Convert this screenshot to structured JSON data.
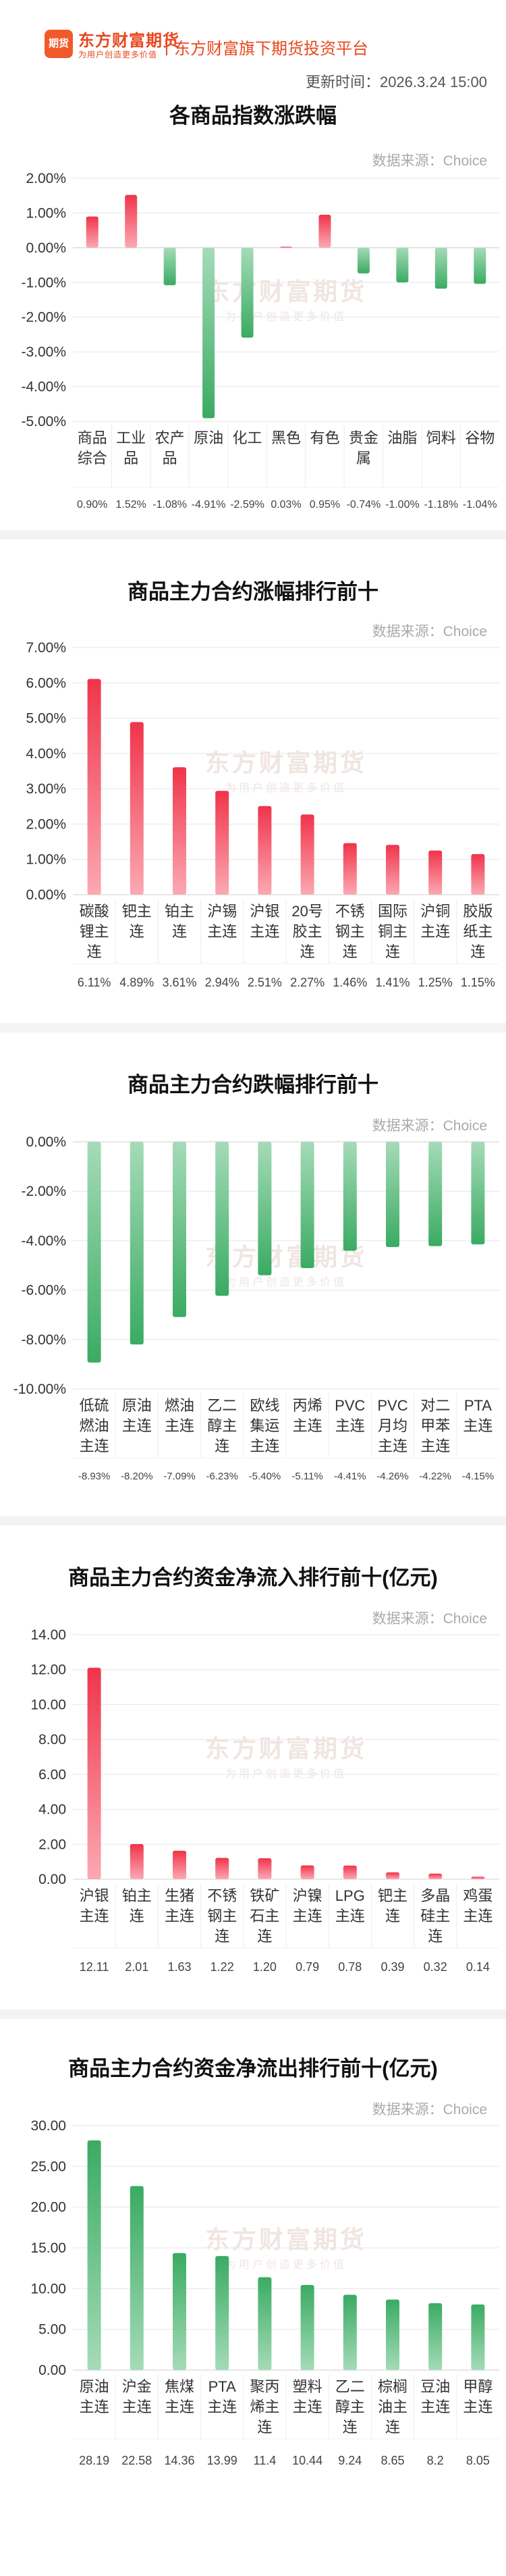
{
  "header": {
    "logo_mark": "期货",
    "logo_text": "东方财富期货",
    "logo_sub": "为用户创造更多价值",
    "tagline": "东方财富旗下期货投资平台",
    "update_time": "更新时间：2026.3.24 15:00"
  },
  "watermark": {
    "main": "东方财富期货",
    "sub": "为用户创造更多价值"
  },
  "colors": {
    "up": "#f0344a",
    "down": "#3aab62",
    "accent": "#e8471d"
  },
  "charts": [
    {
      "title": "各商品指数涨跌幅",
      "source": "数据来源：Choice",
      "chart_data": {
        "type": "bar",
        "categories": [
          "商品综合",
          "工业品",
          "农产品",
          "原油",
          "化工",
          "黑色",
          "有色",
          "贵金属",
          "油脂",
          "饲料",
          "谷物"
        ],
        "values": [
          0.9,
          1.52,
          -1.08,
          -4.91,
          -2.59,
          0.03,
          0.95,
          -0.74,
          -1.0,
          -1.18,
          -1.04
        ],
        "value_labels": [
          "0.90%",
          "1.52%",
          "-1.08%",
          "-4.91%",
          "-2.59%",
          "0.03%",
          "0.95%",
          "-0.74%",
          "-1.00%",
          "-1.18%",
          "-1.04%"
        ],
        "ylim": [
          -5,
          2
        ],
        "yticks": [
          2,
          1,
          0,
          -1,
          -2,
          -3,
          -4,
          -5
        ],
        "ytick_labels": [
          "2.00%",
          "1.00%",
          "0.00%",
          "-1.00%",
          "-2.00%",
          "-3.00%",
          "-4.00%",
          "-5.00%"
        ],
        "category_lines": [
          [
            "商品",
            "综合"
          ],
          [
            "工业",
            "品"
          ],
          [
            "农产",
            "品"
          ],
          [
            "原油"
          ],
          [
            "化工"
          ],
          [
            "黑色"
          ],
          [
            "有色"
          ],
          [
            "贵金",
            "属"
          ],
          [
            "油脂"
          ],
          [
            "饲料"
          ],
          [
            "谷物"
          ]
        ],
        "grid": true
      }
    },
    {
      "title": "商品主力合约涨幅排行前十",
      "source": "数据来源：Choice",
      "chart_data": {
        "type": "bar",
        "categories": [
          "碳酸锂主连",
          "钯主连",
          "铂主连",
          "沪锡主连",
          "沪银主连",
          "20号胶主连",
          "不锈钢主连",
          "国际铜主连",
          "沪铜主连",
          "胶版纸主连"
        ],
        "values": [
          6.11,
          4.89,
          3.61,
          2.94,
          2.51,
          2.27,
          1.46,
          1.41,
          1.25,
          1.15
        ],
        "value_labels": [
          "6.11%",
          "4.89%",
          "3.61%",
          "2.94%",
          "2.51%",
          "2.27%",
          "1.46%",
          "1.41%",
          "1.25%",
          "1.15%"
        ],
        "ylim": [
          0,
          7
        ],
        "yticks": [
          7,
          6,
          5,
          4,
          3,
          2,
          1,
          0
        ],
        "ytick_labels": [
          "7.00%",
          "6.00%",
          "5.00%",
          "4.00%",
          "3.00%",
          "2.00%",
          "1.00%",
          "0.00%"
        ],
        "category_lines": [
          [
            "碳酸",
            "锂主",
            "连"
          ],
          [
            "钯主",
            "连"
          ],
          [
            "铂主",
            "连"
          ],
          [
            "沪锡",
            "主连"
          ],
          [
            "沪银",
            "主连"
          ],
          [
            "20号",
            "胶主",
            "连"
          ],
          [
            "不锈",
            "钢主",
            "连"
          ],
          [
            "国际",
            "铜主",
            "连"
          ],
          [
            "沪铜",
            "主连"
          ],
          [
            "胶版",
            "纸主",
            "连"
          ]
        ],
        "grid": true
      }
    },
    {
      "title": "商品主力合约跌幅排行前十",
      "source": "数据来源：Choice",
      "chart_data": {
        "type": "bar",
        "categories": [
          "低硫燃油主连",
          "原油主连",
          "燃油主连",
          "乙二醇主连",
          "欧线集运主连",
          "丙烯主连",
          "PVC主连",
          "PVC月均主连",
          "对二甲苯主连",
          "PTA主连"
        ],
        "values": [
          -8.93,
          -8.2,
          -7.09,
          -6.23,
          -5.4,
          -5.11,
          -4.41,
          -4.26,
          -4.22,
          -4.15
        ],
        "value_labels": [
          "-8.93%",
          "-8.20%",
          "-7.09%",
          "-6.23%",
          "-5.40%",
          "-5.11%",
          "-4.41%",
          "-4.26%",
          "-4.22%",
          "-4.15%"
        ],
        "ylim": [
          -10,
          0
        ],
        "yticks": [
          0,
          -2,
          -4,
          -6,
          -8,
          -10
        ],
        "ytick_labels": [
          "0.00%",
          "-2.00%",
          "-4.00%",
          "-6.00%",
          "-8.00%",
          "-10.00%"
        ],
        "category_lines": [
          [
            "低硫",
            "燃油",
            "主连"
          ],
          [
            "原油",
            "主连"
          ],
          [
            "燃油",
            "主连"
          ],
          [
            "乙二",
            "醇主",
            "连"
          ],
          [
            "欧线",
            "集运",
            "主连"
          ],
          [
            "丙烯",
            "主连"
          ],
          [
            "PVC",
            "主连"
          ],
          [
            "PVC",
            "月均",
            "主连"
          ],
          [
            "对二",
            "甲苯",
            "主连"
          ],
          [
            "PTA",
            "主连"
          ]
        ],
        "grid": true
      }
    },
    {
      "title": "商品主力合约资金净流入排行前十(亿元)",
      "source": "数据来源：Choice",
      "chart_data": {
        "type": "bar",
        "categories": [
          "沪银主连",
          "铂主连",
          "生猪主连",
          "不锈钢主连",
          "铁矿石主连",
          "沪镍主连",
          "LPG主连",
          "钯主连",
          "多晶硅主连",
          "鸡蛋主连"
        ],
        "values": [
          12.11,
          2.01,
          1.63,
          1.22,
          1.2,
          0.79,
          0.78,
          0.39,
          0.32,
          0.14
        ],
        "value_labels": [
          "12.11",
          "2.01",
          "1.63",
          "1.22",
          "1.20",
          "0.79",
          "0.78",
          "0.39",
          "0.32",
          "0.14"
        ],
        "ylim": [
          0,
          14
        ],
        "yticks": [
          14,
          12,
          10,
          8,
          6,
          4,
          2,
          0
        ],
        "ytick_labels": [
          "14.00",
          "12.00",
          "10.00",
          "8.00",
          "6.00",
          "4.00",
          "2.00",
          "0.00"
        ],
        "category_lines": [
          [
            "沪银",
            "主连"
          ],
          [
            "铂主",
            "连"
          ],
          [
            "生猪",
            "主连"
          ],
          [
            "不锈",
            "钢主",
            "连"
          ],
          [
            "铁矿",
            "石主",
            "连"
          ],
          [
            "沪镍",
            "主连"
          ],
          [
            "LPG",
            "主连"
          ],
          [
            "钯主",
            "连"
          ],
          [
            "多晶",
            "硅主",
            "连"
          ],
          [
            "鸡蛋",
            "主连"
          ]
        ],
        "grid": true
      }
    },
    {
      "title": "商品主力合约资金净流出排行前十(亿元)",
      "source": "数据来源：Choice",
      "chart_data": {
        "type": "bar",
        "categories": [
          "原油主连",
          "沪金主连",
          "焦煤主连",
          "PTA主连",
          "聚丙烯主连",
          "塑料主连",
          "乙二醇主连",
          "棕榈油主连",
          "豆油主连",
          "甲醇主连"
        ],
        "values": [
          28.19,
          22.58,
          14.36,
          13.99,
          11.4,
          10.44,
          9.24,
          8.65,
          8.2,
          8.05
        ],
        "value_labels": [
          "28.19",
          "22.58",
          "14.36",
          "13.99",
          "11.4",
          "10.44",
          "9.24",
          "8.65",
          "8.2",
          "8.05"
        ],
        "ylim": [
          0,
          30
        ],
        "yticks": [
          30,
          25,
          20,
          15,
          10,
          5,
          0
        ],
        "ytick_labels": [
          "30.00",
          "25.00",
          "20.00",
          "15.00",
          "10.00",
          "5.00",
          "0.00"
        ],
        "category_lines": [
          [
            "原油",
            "主连"
          ],
          [
            "沪金",
            "主连"
          ],
          [
            "焦煤",
            "主连"
          ],
          [
            "PTA",
            "主连"
          ],
          [
            "聚丙",
            "烯主",
            "连"
          ],
          [
            "塑料",
            "主连"
          ],
          [
            "乙二",
            "醇主",
            "连"
          ],
          [
            "棕榈",
            "油主",
            "连"
          ],
          [
            "豆油",
            "主连"
          ],
          [
            "甲醇",
            "主连"
          ]
        ],
        "grid": true,
        "bar_color": "down"
      }
    }
  ]
}
